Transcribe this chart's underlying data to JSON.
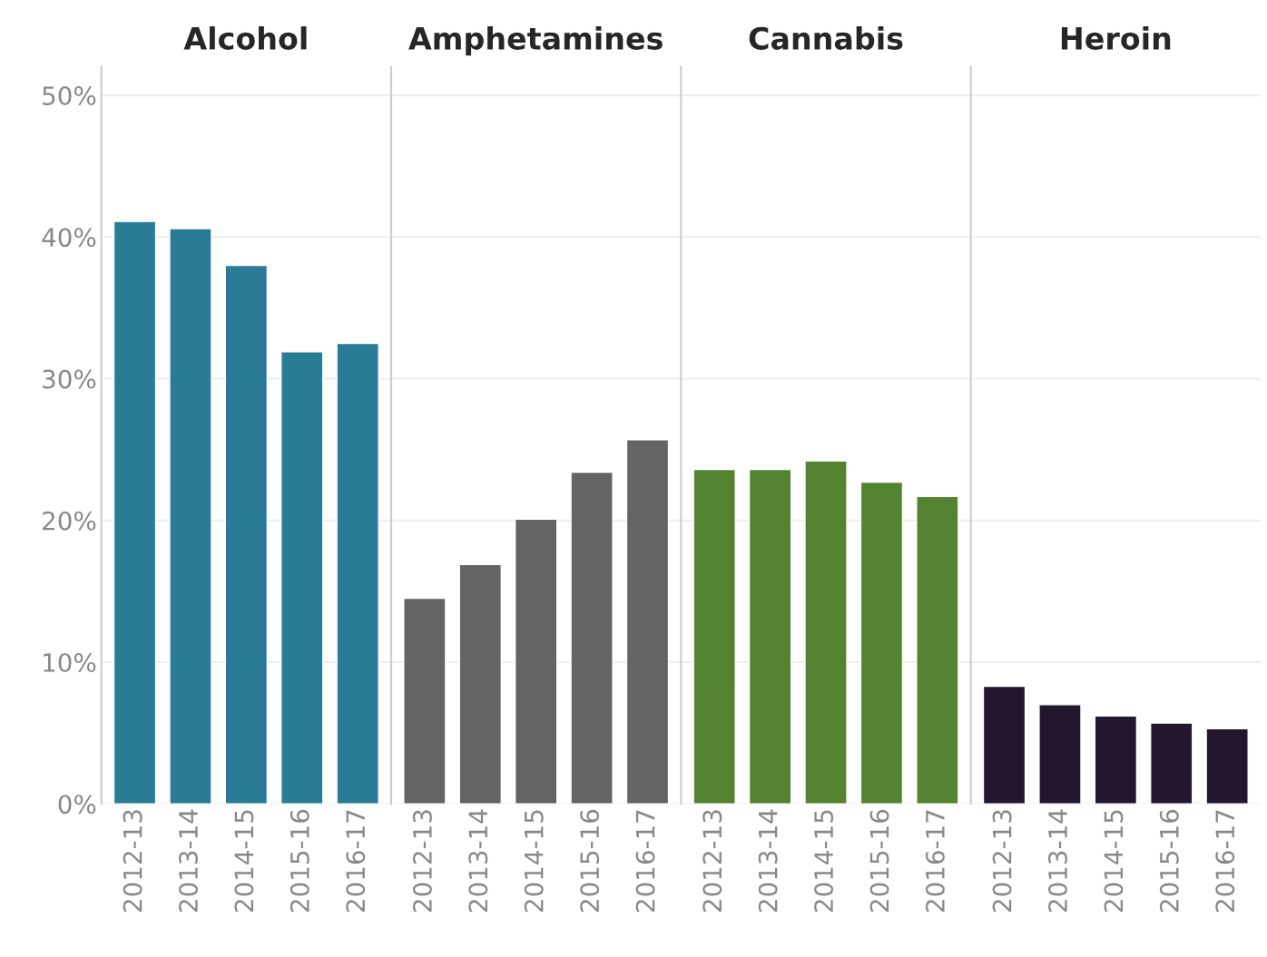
{
  "chart_data": [
    {
      "type": "bar",
      "title": "Alcohol",
      "categories": [
        "2012-13",
        "2013-14",
        "2014-15",
        "2015-16",
        "2016-17"
      ],
      "values": [
        41.1,
        40.6,
        38.0,
        31.9,
        32.5
      ],
      "color": "#2a7b96",
      "ylim": [
        0,
        52
      ],
      "yticks": [
        {
          "value": 0,
          "label": "0%"
        },
        {
          "value": 10,
          "label": "10%"
        },
        {
          "value": 20,
          "label": "20%"
        },
        {
          "value": 30,
          "label": "30%"
        },
        {
          "value": 40,
          "label": "40%"
        },
        {
          "value": 50,
          "label": "50%"
        }
      ],
      "grid": "y",
      "legend": false
    },
    {
      "type": "bar",
      "title": "Amphetamines",
      "categories": [
        "2012-13",
        "2013-14",
        "2014-15",
        "2015-16",
        "2016-17"
      ],
      "values": [
        14.5,
        16.9,
        20.1,
        23.4,
        25.7
      ],
      "color": "#636463",
      "ylim": [
        0,
        52
      ],
      "yticks": [
        0,
        10,
        20,
        30,
        40,
        50
      ],
      "grid": "y",
      "legend": false,
      "tick_labels": "x"
    },
    {
      "type": "bar",
      "title": "Cannabis",
      "categories": [
        "2012-13",
        "2013-14",
        "2014-15",
        "2015-16",
        "2016-17"
      ],
      "values": [
        23.6,
        23.6,
        24.2,
        22.7,
        21.7
      ],
      "color": "#558230",
      "ylim": [
        0,
        52
      ],
      "yticks": [
        0,
        10,
        20,
        30,
        40,
        50
      ],
      "grid": "y",
      "legend": false,
      "tick_labels": "x"
    },
    {
      "type": "bar",
      "title": "Heroin",
      "categories": [
        "2012-13",
        "2013-14",
        "2014-15",
        "2015-16",
        "2016-17"
      ],
      "values": [
        8.3,
        7.0,
        6.2,
        5.7,
        5.3
      ],
      "color": "#23172e",
      "ylim": [
        0,
        52
      ],
      "yticks": [
        0,
        10,
        20,
        30,
        40,
        50
      ],
      "grid": "y",
      "legend": false,
      "tick_labels": "x"
    }
  ]
}
